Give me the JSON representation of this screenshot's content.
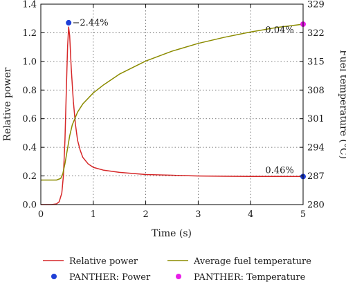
{
  "chart_data": {
    "type": "line",
    "title": "",
    "xlabel": "Time (s)",
    "ylabel": "Relative power",
    "y2label": "Fuel temperature (°C)",
    "xlim": [
      0,
      5
    ],
    "ylim": [
      0,
      1.4
    ],
    "y2lim": [
      280,
      329
    ],
    "xticks": [
      0,
      1,
      2,
      3,
      4,
      5
    ],
    "yticks": [
      0.0,
      0.2,
      0.4,
      0.6,
      0.8,
      1.0,
      1.2,
      1.4
    ],
    "y2ticks": [
      280,
      287,
      294,
      301,
      308,
      315,
      322,
      329
    ],
    "grid": true,
    "legend_position": "bottom",
    "series": [
      {
        "name": "Relative power",
        "axis": "left",
        "color": "#d62728",
        "x": [
          0,
          0.2,
          0.3,
          0.35,
          0.4,
          0.43,
          0.46,
          0.49,
          0.51,
          0.53,
          0.55,
          0.58,
          0.62,
          0.66,
          0.7,
          0.75,
          0.8,
          0.9,
          1.0,
          1.2,
          1.5,
          2.0,
          2.5,
          3.0,
          3.5,
          4.0,
          4.5,
          5.0
        ],
        "y": [
          0.0,
          0.0,
          0.005,
          0.02,
          0.08,
          0.2,
          0.45,
          0.85,
          1.1,
          1.24,
          1.18,
          0.95,
          0.72,
          0.56,
          0.45,
          0.38,
          0.33,
          0.285,
          0.26,
          0.24,
          0.225,
          0.21,
          0.205,
          0.2,
          0.198,
          0.197,
          0.197,
          0.196
        ]
      },
      {
        "name": "Average fuel temperature",
        "axis": "right",
        "color": "#8b8b00",
        "x": [
          0,
          0.3,
          0.38,
          0.42,
          0.46,
          0.5,
          0.55,
          0.6,
          0.7,
          0.8,
          1.0,
          1.2,
          1.5,
          2.0,
          2.5,
          3.0,
          3.5,
          4.0,
          4.5,
          5.0
        ],
        "y": [
          286.0,
          286.0,
          286.4,
          287.6,
          290.0,
          293.0,
          296.8,
          299.5,
          302.6,
          304.6,
          307.3,
          309.3,
          311.9,
          315.1,
          317.5,
          319.4,
          320.9,
          322.2,
          323.3,
          324.1
        ]
      }
    ],
    "points": [
      {
        "name": "PANTHER: Power",
        "color": "#1f3fd6",
        "axis": "left",
        "x": [
          0.53,
          5.0
        ],
        "y": [
          1.27,
          0.196
        ]
      },
      {
        "name": "PANTHER: Temperature",
        "color": "#e81ee8",
        "axis": "right",
        "x": [
          5.0
        ],
        "y": [
          324.1
        ]
      }
    ],
    "annotations": [
      {
        "text": "−2.44%",
        "x": 0.6,
        "y": 1.25
      },
      {
        "text": "0.04%",
        "x": 4.28,
        "y": 1.2
      },
      {
        "text": "0.46%",
        "x": 4.28,
        "y": 0.22
      }
    ]
  }
}
